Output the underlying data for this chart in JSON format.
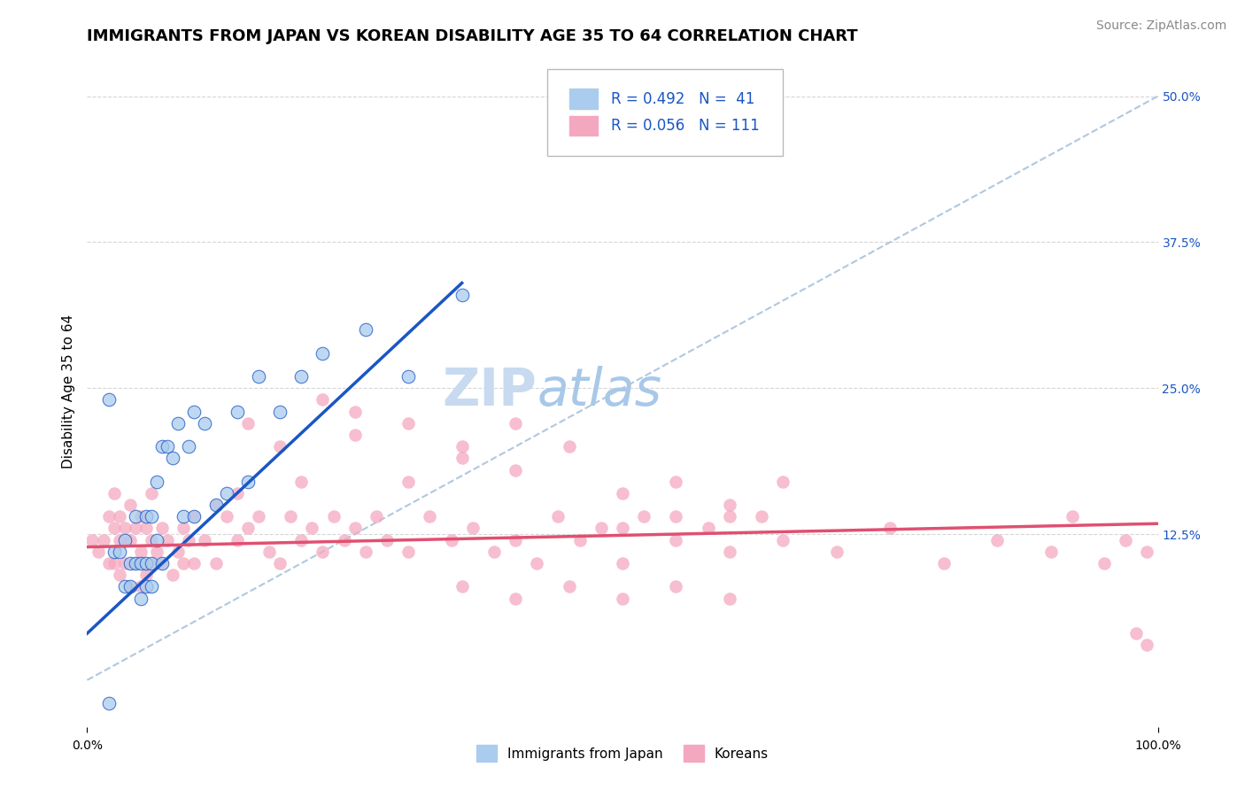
{
  "title": "IMMIGRANTS FROM JAPAN VS KOREAN DISABILITY AGE 35 TO 64 CORRELATION CHART",
  "source": "Source: ZipAtlas.com",
  "xlabel_ticks": [
    "0.0%",
    "100.0%"
  ],
  "ylabel_label": "Disability Age 35 to 64",
  "right_ytick_labels": [
    "50.0%",
    "37.5%",
    "25.0%",
    "12.5%"
  ],
  "right_ytick_positions": [
    0.5,
    0.375,
    0.25,
    0.125
  ],
  "xmin": 0.0,
  "xmax": 1.0,
  "ymin": -0.04,
  "ymax": 0.535,
  "legend_blue_r": "R = 0.492",
  "legend_blue_n": "N =  41",
  "legend_pink_r": "R = 0.056",
  "legend_pink_n": "N = 111",
  "legend_label_blue": "Immigrants from Japan",
  "legend_label_pink": "Koreans",
  "blue_color": "#aaccee",
  "pink_color": "#f4a8c0",
  "blue_line_color": "#1a56c4",
  "pink_line_color": "#e05070",
  "diagonal_line_color": "#b0c8e0",
  "watermark_zip": "ZIP",
  "watermark_atlas": "atlas",
  "blue_scatter_x": [
    0.02,
    0.025,
    0.03,
    0.035,
    0.035,
    0.04,
    0.04,
    0.045,
    0.045,
    0.05,
    0.05,
    0.055,
    0.055,
    0.055,
    0.06,
    0.06,
    0.06,
    0.065,
    0.065,
    0.07,
    0.07,
    0.075,
    0.08,
    0.085,
    0.09,
    0.095,
    0.1,
    0.1,
    0.11,
    0.12,
    0.13,
    0.14,
    0.15,
    0.16,
    0.18,
    0.2,
    0.22,
    0.26,
    0.3,
    0.35,
    0.02
  ],
  "blue_scatter_y": [
    0.24,
    0.11,
    0.11,
    0.08,
    0.12,
    0.08,
    0.1,
    0.1,
    0.14,
    0.07,
    0.1,
    0.08,
    0.1,
    0.14,
    0.08,
    0.1,
    0.14,
    0.12,
    0.17,
    0.1,
    0.2,
    0.2,
    0.19,
    0.22,
    0.14,
    0.2,
    0.14,
    0.23,
    0.22,
    0.15,
    0.16,
    0.23,
    0.17,
    0.26,
    0.23,
    0.26,
    0.28,
    0.3,
    0.26,
    0.33,
    -0.02
  ],
  "pink_scatter_x": [
    0.005,
    0.01,
    0.015,
    0.02,
    0.02,
    0.025,
    0.025,
    0.025,
    0.03,
    0.03,
    0.03,
    0.035,
    0.035,
    0.04,
    0.04,
    0.04,
    0.045,
    0.045,
    0.05,
    0.05,
    0.05,
    0.055,
    0.055,
    0.06,
    0.06,
    0.06,
    0.065,
    0.07,
    0.07,
    0.075,
    0.08,
    0.085,
    0.09,
    0.09,
    0.095,
    0.1,
    0.1,
    0.11,
    0.12,
    0.12,
    0.13,
    0.14,
    0.14,
    0.15,
    0.16,
    0.17,
    0.18,
    0.19,
    0.2,
    0.21,
    0.22,
    0.23,
    0.24,
    0.25,
    0.26,
    0.27,
    0.28,
    0.3,
    0.32,
    0.34,
    0.36,
    0.38,
    0.4,
    0.42,
    0.44,
    0.46,
    0.48,
    0.5,
    0.52,
    0.55,
    0.58,
    0.6,
    0.63,
    0.65,
    0.7,
    0.75,
    0.8,
    0.85,
    0.9,
    0.92,
    0.95,
    0.97,
    0.99,
    0.15,
    0.18,
    0.22,
    0.25,
    0.3,
    0.35,
    0.25,
    0.4,
    0.45,
    0.3,
    0.35,
    0.4,
    0.2,
    0.5,
    0.55,
    0.6,
    0.65,
    0.5,
    0.55,
    0.6,
    0.35,
    0.4,
    0.45,
    0.5,
    0.55,
    0.6,
    0.98,
    0.99
  ],
  "pink_scatter_y": [
    0.12,
    0.11,
    0.12,
    0.1,
    0.14,
    0.1,
    0.13,
    0.16,
    0.09,
    0.12,
    0.14,
    0.1,
    0.13,
    0.08,
    0.12,
    0.15,
    0.1,
    0.13,
    0.08,
    0.11,
    0.14,
    0.09,
    0.13,
    0.1,
    0.12,
    0.16,
    0.11,
    0.13,
    0.1,
    0.12,
    0.09,
    0.11,
    0.13,
    0.1,
    0.12,
    0.14,
    0.1,
    0.12,
    0.15,
    0.1,
    0.14,
    0.12,
    0.16,
    0.13,
    0.14,
    0.11,
    0.1,
    0.14,
    0.12,
    0.13,
    0.11,
    0.14,
    0.12,
    0.13,
    0.11,
    0.14,
    0.12,
    0.11,
    0.14,
    0.12,
    0.13,
    0.11,
    0.12,
    0.1,
    0.14,
    0.12,
    0.13,
    0.1,
    0.14,
    0.12,
    0.13,
    0.11,
    0.14,
    0.12,
    0.11,
    0.13,
    0.1,
    0.12,
    0.11,
    0.14,
    0.1,
    0.12,
    0.11,
    0.22,
    0.2,
    0.24,
    0.21,
    0.22,
    0.2,
    0.23,
    0.22,
    0.2,
    0.17,
    0.19,
    0.18,
    0.17,
    0.16,
    0.17,
    0.15,
    0.17,
    0.13,
    0.14,
    0.14,
    0.08,
    0.07,
    0.08,
    0.07,
    0.08,
    0.07,
    0.04,
    0.03
  ],
  "blue_trend_x": [
    0.0,
    0.35
  ],
  "blue_trend_y": [
    0.04,
    0.34
  ],
  "pink_trend_x": [
    0.0,
    1.0
  ],
  "pink_trend_y": [
    0.114,
    0.134
  ],
  "diag_line_x": [
    0.0,
    1.0
  ],
  "diag_line_y": [
    0.0,
    0.5
  ],
  "title_fontsize": 13,
  "source_fontsize": 10,
  "axis_label_fontsize": 11,
  "tick_fontsize": 10,
  "legend_fontsize": 12,
  "watermark_fontsize_zip": 42,
  "watermark_fontsize_atlas": 42,
  "watermark_color_zip": "#c8daf0",
  "watermark_color_atlas": "#a8c8e8",
  "background_color": "#ffffff",
  "grid_color": "#cccccc"
}
